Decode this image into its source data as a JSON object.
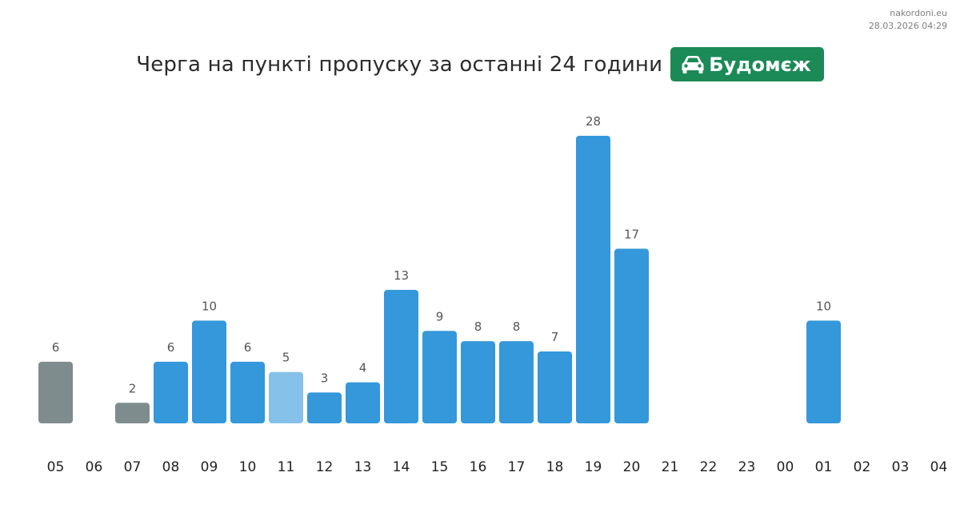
{
  "source": {
    "site": "nakordoni.eu",
    "timestamp": "28.03.2026 04:29"
  },
  "header": {
    "title": "Черга на пункті пропуску за останні 24 години",
    "badge_label": "Будомєж",
    "badge_icon": "car-icon",
    "badge_color": "#1b8a57"
  },
  "colors": {
    "bar_default": "#3498db",
    "bar_light": "#85c1e9",
    "bar_gray": "#7f8c8d",
    "label_text": "#555555",
    "tick_text": "#222222"
  },
  "chart_data": {
    "type": "bar",
    "title": "Черга на пункті пропуску за останні 24 години",
    "xlabel": "",
    "ylabel": "",
    "grid": false,
    "legend": "none",
    "ylim": [
      0,
      28
    ],
    "categories": [
      "05",
      "06",
      "07",
      "08",
      "09",
      "10",
      "11",
      "12",
      "13",
      "14",
      "15",
      "16",
      "17",
      "18",
      "19",
      "20",
      "21",
      "22",
      "23",
      "00",
      "01",
      "02",
      "03",
      "04"
    ],
    "values": [
      6,
      null,
      2,
      6,
      10,
      6,
      5,
      3,
      4,
      13,
      9,
      8,
      8,
      7,
      28,
      17,
      null,
      null,
      null,
      null,
      10,
      null,
      null,
      null
    ],
    "bar_styles": [
      "gray",
      "none",
      "gray",
      "default",
      "default",
      "default",
      "light",
      "default",
      "default",
      "default",
      "default",
      "default",
      "default",
      "default",
      "default",
      "default",
      "none",
      "none",
      "none",
      "none",
      "default",
      "none",
      "none",
      "none"
    ]
  }
}
